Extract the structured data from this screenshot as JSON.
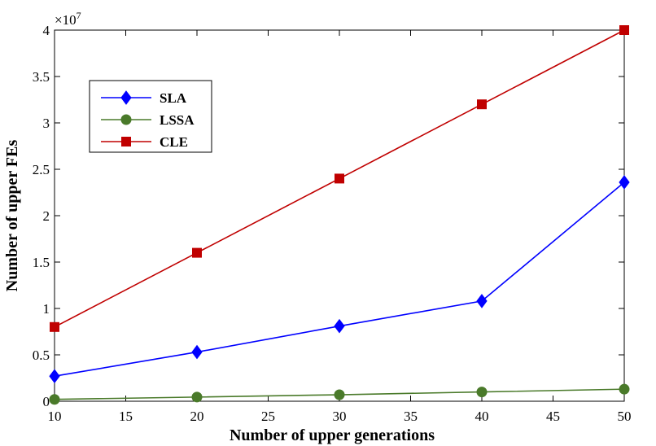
{
  "chart_data": {
    "type": "line",
    "xlabel": "Number of upper generations",
    "ylabel": "Number of upper FEs",
    "y_multiplier": "×10",
    "y_exponent": "7",
    "xlim": [
      10,
      50
    ],
    "ylim": [
      0,
      4
    ],
    "x_ticks": [
      10,
      15,
      20,
      25,
      30,
      35,
      40,
      45,
      50
    ],
    "y_ticks": [
      0,
      0.5,
      1,
      1.5,
      2,
      2.5,
      3,
      3.5,
      4
    ],
    "grid": false,
    "legend_position": "upper-left",
    "x": [
      10,
      20,
      30,
      40,
      50
    ],
    "series": [
      {
        "name": "SLA",
        "color": "#0000ff",
        "marker": "diamond",
        "values": [
          0.27,
          0.53,
          0.81,
          1.08,
          2.36
        ]
      },
      {
        "name": "LSSA",
        "color": "#4a7a2a",
        "marker": "circle",
        "values": [
          0.02,
          0.045,
          0.07,
          0.1,
          0.13
        ]
      },
      {
        "name": "CLE",
        "color": "#c00000",
        "marker": "square",
        "values": [
          0.8,
          1.6,
          2.4,
          3.2,
          4.0
        ]
      }
    ]
  }
}
